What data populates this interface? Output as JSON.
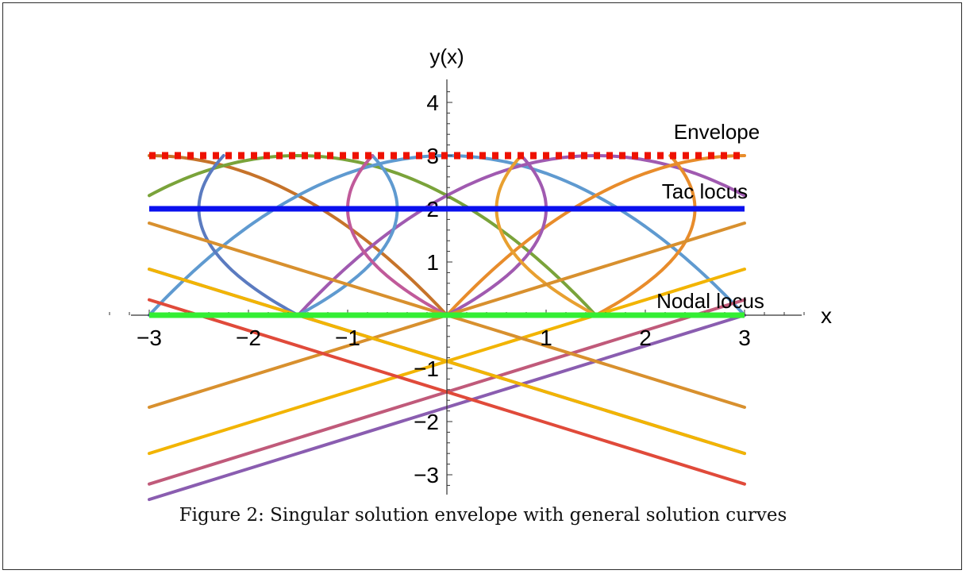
{
  "caption": "Figure 2: Singular solution envelope with general solution curves",
  "chart_data": {
    "type": "line",
    "title": "",
    "xlabel": "x",
    "ylabel": "y(x)",
    "xlim": [
      -3,
      3
    ],
    "ylim": [
      -3.4,
      4.3
    ],
    "xticks": [
      {
        "value": -3,
        "label": "−3"
      },
      {
        "value": -2,
        "label": "−2"
      },
      {
        "value": -1,
        "label": "−1"
      },
      {
        "value": 1,
        "label": "1"
      },
      {
        "value": 2,
        "label": "2"
      },
      {
        "value": 3,
        "label": "3"
      }
    ],
    "yticks": [
      {
        "value": -3,
        "label": "−3"
      },
      {
        "value": -2,
        "label": "−2"
      },
      {
        "value": -1,
        "label": "−1"
      },
      {
        "value": 1,
        "label": "1"
      },
      {
        "value": 2,
        "label": "2"
      },
      {
        "value": 3,
        "label": "3"
      },
      {
        "value": 4,
        "label": "4"
      }
    ],
    "grid": false,
    "family": {
      "description_of_curves": "upper branch y = 3 - (x - c)^2/3, lower branch y = -(x - c)^2/3 for y in [0,3] inside |x-c|<=3; lines y = ±x/√3 + k",
      "parabola_centers_c": [
        -3,
        -1.5,
        0,
        1.5,
        3
      ],
      "upper_lobes": [
        {
          "center": -1.5,
          "color": "#c6732a"
        },
        {
          "center": 0,
          "color": "#5f9ad0"
        },
        {
          "center": 1.5,
          "color": "#e88c2b"
        }
      ],
      "lines": [
        {
          "slope": 0.57735,
          "intercept": -1.732,
          "color": "#8a5db0"
        },
        {
          "slope": 0.57735,
          "intercept": -0.866,
          "color": "#f2b400"
        },
        {
          "slope": 0.57735,
          "intercept": 0,
          "color": "#d8902e"
        },
        {
          "slope": 0.57735,
          "intercept": -1.443,
          "color": "#c05a7a"
        },
        {
          "slope": -0.57735,
          "intercept": -0.866,
          "color": "#7b72b8"
        },
        {
          "slope": -0.57735,
          "intercept": 0,
          "color": "#d8902e"
        },
        {
          "slope": -0.57735,
          "intercept": -0.866,
          "color": "#f2b400"
        },
        {
          "slope": -0.57735,
          "intercept": -1.443,
          "color": "#e04a3a"
        }
      ]
    },
    "loci": [
      {
        "name": "Envelope",
        "y": 3,
        "color": "#ee1100",
        "style": "dotted"
      },
      {
        "name": "Tac locus",
        "y": 2,
        "color": "#0a10ee",
        "style": "solid"
      },
      {
        "name": "Nodal locus",
        "y": 0,
        "color": "#33ee33",
        "style": "solid"
      }
    ]
  }
}
